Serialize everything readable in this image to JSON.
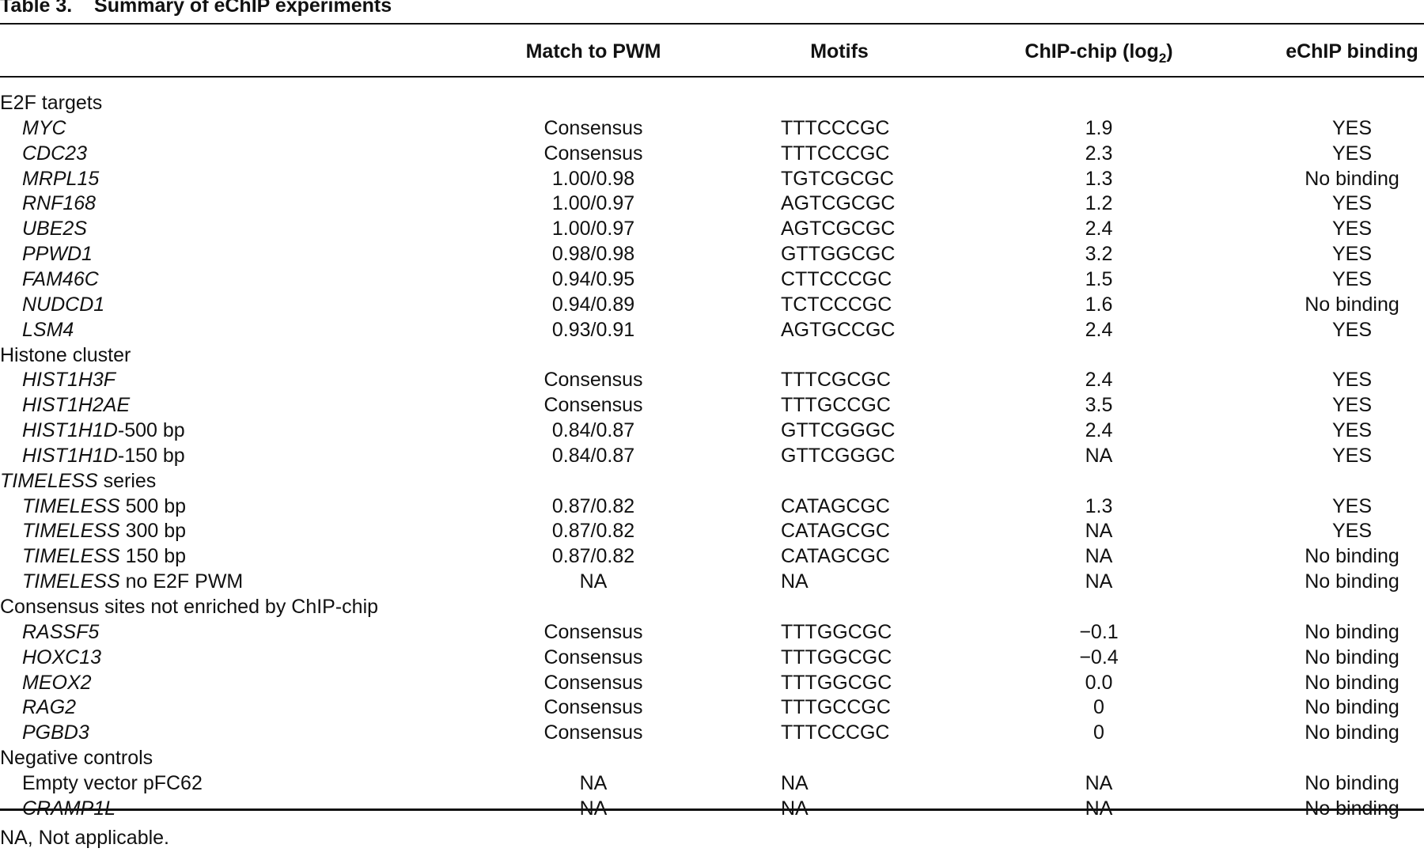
{
  "title": {
    "label": "Table 3.",
    "caption": "Summary of eChIP experiments"
  },
  "table": {
    "header": [
      "Match to PWM",
      "Motifs",
      [
        "ChIP-chip (log",
        "2",
        ")"
      ],
      "eChIP binding"
    ],
    "groups": [
      {
        "name": [
          {
            "text": "E2F targets"
          }
        ],
        "rows": [
          {
            "name": [
              {
                "text": "MYC",
                "italic": true
              }
            ],
            "cells": [
              "Consensus",
              "TTTCCCGC",
              "1.9",
              "YES"
            ]
          },
          {
            "name": [
              {
                "text": "CDC23",
                "italic": true
              }
            ],
            "cells": [
              "Consensus",
              "TTTCCCGC",
              "2.3",
              "YES"
            ]
          },
          {
            "name": [
              {
                "text": "MRPL15",
                "italic": true
              }
            ],
            "cells": [
              "1.00/0.98",
              "TGTCGCGC",
              "1.3",
              "No binding"
            ]
          },
          {
            "name": [
              {
                "text": "RNF168",
                "italic": true
              }
            ],
            "cells": [
              "1.00/0.97",
              "AGTCGCGC",
              "1.2",
              "YES"
            ]
          },
          {
            "name": [
              {
                "text": "UBE2S",
                "italic": true
              }
            ],
            "cells": [
              "1.00/0.97",
              "AGTCGCGC",
              "2.4",
              "YES"
            ]
          },
          {
            "name": [
              {
                "text": "PPWD1",
                "italic": true
              }
            ],
            "cells": [
              "0.98/0.98",
              "GTTGGCGC",
              "3.2",
              "YES"
            ]
          },
          {
            "name": [
              {
                "text": "FAM46C",
                "italic": true
              }
            ],
            "cells": [
              "0.94/0.95",
              "CTTCCCGC",
              "1.5",
              "YES"
            ]
          },
          {
            "name": [
              {
                "text": "NUDCD1",
                "italic": true
              }
            ],
            "cells": [
              "0.94/0.89",
              "TCTCCCGC",
              "1.6",
              "No binding"
            ]
          },
          {
            "name": [
              {
                "text": "LSM4",
                "italic": true
              }
            ],
            "cells": [
              "0.93/0.91",
              "AGTGCCGC",
              "2.4",
              "YES"
            ]
          }
        ]
      },
      {
        "name": [
          {
            "text": "Histone cluster"
          }
        ],
        "rows": [
          {
            "name": [
              {
                "text": "HIST1H3F",
                "italic": true
              }
            ],
            "cells": [
              "Consensus",
              "TTTCGCGC",
              "2.4",
              "YES"
            ]
          },
          {
            "name": [
              {
                "text": "HIST1H2AE",
                "italic": true
              }
            ],
            "cells": [
              "Consensus",
              "TTTGCCGC",
              "3.5",
              "YES"
            ]
          },
          {
            "name": [
              {
                "text": "HIST1H1D",
                "italic": true
              },
              {
                "text": "-500 bp"
              }
            ],
            "cells": [
              "0.84/0.87",
              "GTTCGGGC",
              "2.4",
              "YES"
            ]
          },
          {
            "name": [
              {
                "text": "HIST1H1D",
                "italic": true
              },
              {
                "text": "-150 bp"
              }
            ],
            "cells": [
              "0.84/0.87",
              "GTTCGGGC",
              "NA",
              "YES"
            ]
          }
        ]
      },
      {
        "name": [
          {
            "text": "TIMELESS",
            "italic": true
          },
          {
            "text": " series"
          }
        ],
        "rows": [
          {
            "name": [
              {
                "text": "TIMELESS",
                "italic": true
              },
              {
                "text": " 500 bp"
              }
            ],
            "cells": [
              "0.87/0.82",
              "CATAGCGC",
              "1.3",
              "YES"
            ]
          },
          {
            "name": [
              {
                "text": "TIMELESS",
                "italic": true
              },
              {
                "text": " 300 bp"
              }
            ],
            "cells": [
              "0.87/0.82",
              "CATAGCGC",
              "NA",
              "YES"
            ]
          },
          {
            "name": [
              {
                "text": "TIMELESS",
                "italic": true
              },
              {
                "text": " 150 bp"
              }
            ],
            "cells": [
              "0.87/0.82",
              "CATAGCGC",
              "NA",
              "No binding"
            ]
          },
          {
            "name": [
              {
                "text": "TIMELESS",
                "italic": true
              },
              {
                "text": " no E2F PWM"
              }
            ],
            "cells": [
              "NA",
              "NA",
              "NA",
              "No binding"
            ]
          }
        ]
      },
      {
        "name": [
          {
            "text": "Consensus sites not enriched by ChIP-chip"
          }
        ],
        "rows": [
          {
            "name": [
              {
                "text": "RASSF5",
                "italic": true
              }
            ],
            "cells": [
              "Consensus",
              "TTTGGCGC",
              "−0.1",
              "No binding"
            ]
          },
          {
            "name": [
              {
                "text": "HOXC13",
                "italic": true
              }
            ],
            "cells": [
              "Consensus",
              "TTTGGCGC",
              "−0.4",
              "No binding"
            ]
          },
          {
            "name": [
              {
                "text": "MEOX2",
                "italic": true
              }
            ],
            "cells": [
              "Consensus",
              "TTTGGCGC",
              "0.0",
              "No binding"
            ]
          },
          {
            "name": [
              {
                "text": "RAG2",
                "italic": true
              }
            ],
            "cells": [
              "Consensus",
              "TTTGCCGC",
              "0",
              "No binding"
            ]
          },
          {
            "name": [
              {
                "text": "PGBD3",
                "italic": true
              }
            ],
            "cells": [
              "Consensus",
              "TTTCCCGC",
              "0",
              "No binding"
            ]
          }
        ]
      },
      {
        "name": [
          {
            "text": "Negative controls"
          }
        ],
        "rows": [
          {
            "name": [
              {
                "text": "Empty vector pFC62"
              }
            ],
            "cells": [
              "NA",
              "NA",
              "NA",
              "No binding"
            ]
          },
          {
            "name": [
              {
                "text": "CRAMP1L",
                "italic": true
              }
            ],
            "cells": [
              "NA",
              "NA",
              "NA",
              "No binding"
            ]
          }
        ]
      }
    ]
  },
  "footnote": "NA, Not applicable."
}
